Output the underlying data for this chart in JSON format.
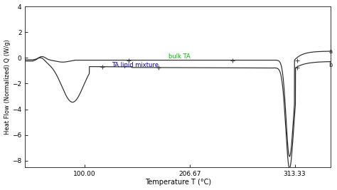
{
  "title": "",
  "xlabel": "Temperature T (°C)",
  "ylabel": "Heat Flow (Normalized) Q (W/g)",
  "xlim": [
    40,
    350
  ],
  "ylim": [
    -8.5,
    4
  ],
  "xticks": [
    100.0,
    206.67,
    313.33
  ],
  "xticklabels": [
    "100.00",
    "206.67",
    "313.33"
  ],
  "yticks": [
    -8,
    -6,
    -4,
    -2,
    0,
    2,
    4
  ],
  "line_color": "#2a2a2a",
  "label_bulk": "bulk TA",
  "label_mixture": "TA lipid mixture",
  "label_bulk_color": "#00bb00",
  "label_mixture_color": "#0000cc",
  "bg_color": "#ffffff",
  "plot_bg_color": "#ffffff"
}
